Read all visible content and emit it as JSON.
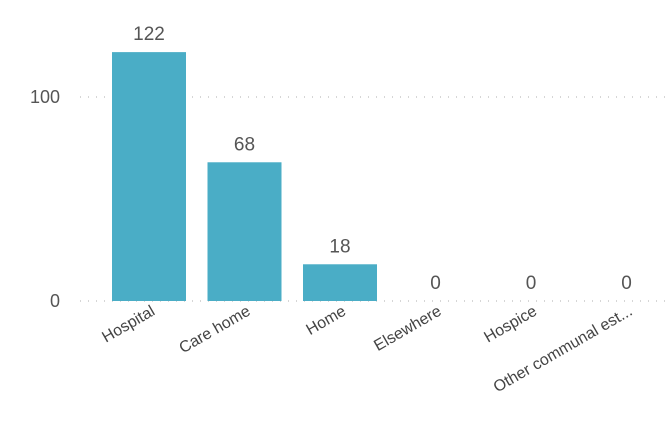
{
  "chart_data": {
    "type": "bar",
    "title": "",
    "xlabel": "",
    "ylabel": "",
    "categories": [
      "Hospital",
      "Care home",
      "Home",
      "Elsewhere",
      "Hospice",
      "Other communal est..."
    ],
    "values": [
      122,
      68,
      18,
      0,
      0,
      0
    ],
    "data_labels": [
      "122",
      "68",
      "18",
      "0",
      "0",
      "0"
    ],
    "yticks": [
      0,
      100
    ],
    "ytick_labels": [
      "0",
      "100"
    ],
    "ylim": [
      0,
      130
    ],
    "grid": true,
    "legend": "none",
    "bar_color": "#4aadc6"
  }
}
